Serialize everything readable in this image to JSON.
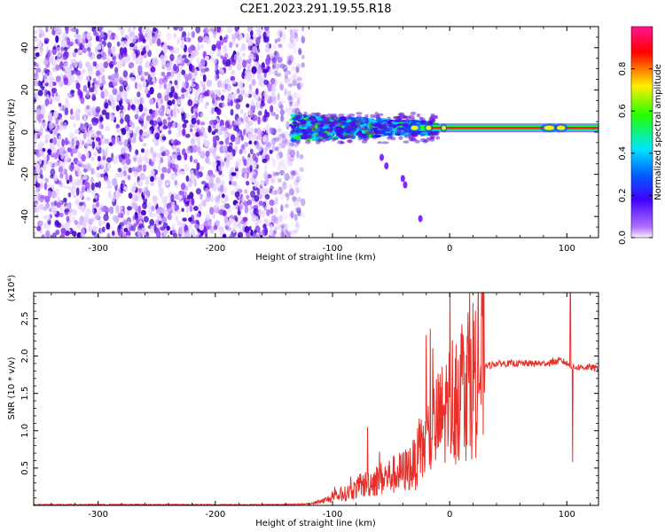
{
  "title": "C2E1.2023.291.19.55.R18",
  "colors": {
    "snr_line": "#e8302a",
    "noise": "#7a1cf0",
    "colorbar": [
      "#f8f0ff",
      "#6a00ff",
      "#0033ff",
      "#00e5ff",
      "#22ff00",
      "#ffee00",
      "#ff0000",
      "#ff1493"
    ]
  },
  "chart_data": [
    {
      "type": "heatmap",
      "title": "C2E1.2023.291.19.55.R18",
      "xlabel": "Height of straight line (km)",
      "ylabel": "Frequency (Hz)",
      "xlim": [
        -355,
        127
      ],
      "ylim": [
        -50,
        50
      ],
      "x_ticks": [
        -300,
        -200,
        -100,
        0,
        100
      ],
      "y_ticks": [
        -40,
        -20,
        0,
        20,
        40
      ],
      "colorbar": {
        "label": "Normalized spectral amplitude",
        "range": [
          0.0,
          1.0
        ],
        "ticks": [
          "0.0",
          "0.2",
          "0.4",
          "0.6",
          "0.8"
        ]
      },
      "features": {
        "broadband_noise_region_km": [
          -355,
          -125
        ],
        "signal_band_center_hz": 2,
        "signal_band_start_km": -135,
        "strong_narrow_signal_from_km": -10,
        "side_lobe_points": [
          [
            -58,
            -12
          ],
          [
            -54,
            -16
          ],
          [
            -40,
            -22
          ],
          [
            -38,
            -25
          ],
          [
            -25,
            -41
          ]
        ]
      }
    },
    {
      "type": "line",
      "xlabel": "Height of straight line (km)",
      "ylabel": "SNR (10 * v/v)",
      "y_multiplier": "(x10⁴)",
      "xlim": [
        -355,
        127
      ],
      "ylim": [
        0,
        2.85
      ],
      "x_ticks": [
        -300,
        -200,
        -100,
        0,
        100
      ],
      "y_ticks": [
        0.5,
        1.0,
        1.5,
        2.0,
        2.5
      ],
      "series": [
        {
          "x": [
            -355,
            -300,
            -250,
            -200,
            -150,
            -120,
            -110,
            -100,
            -90,
            -80,
            -70,
            -60,
            -50,
            -40,
            -30,
            -25,
            -20,
            -15,
            -10,
            -5,
            0,
            5,
            10,
            15,
            20,
            25,
            30,
            40,
            50,
            60,
            70,
            80,
            90,
            95,
            100,
            105,
            110,
            120,
            127
          ],
          "y": [
            0.01,
            0.01,
            0.01,
            0.01,
            0.01,
            0.02,
            0.05,
            0.1,
            0.15,
            0.22,
            0.3,
            0.35,
            0.4,
            0.45,
            0.55,
            0.7,
            0.85,
            1.0,
            1.1,
            1.2,
            1.35,
            1.5,
            1.6,
            1.7,
            1.75,
            1.82,
            1.86,
            1.9,
            1.9,
            1.9,
            1.9,
            1.9,
            1.92,
            1.94,
            1.9,
            1.85,
            1.85,
            1.85,
            1.83
          ],
          "spikes": [
            [
              -70,
              1.05
            ],
            [
              -60,
              0.72
            ],
            [
              -20,
              2.28
            ],
            [
              -2,
              1.65
            ],
            [
              12,
              2.05
            ],
            [
              88,
              1.98
            ],
            [
              103,
              2.85
            ],
            [
              105,
              0.58
            ]
          ]
        }
      ]
    }
  ]
}
